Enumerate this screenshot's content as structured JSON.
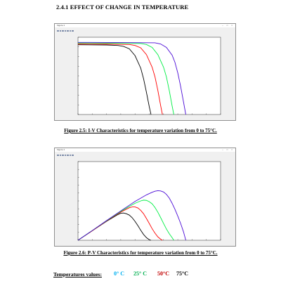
{
  "heading": "2.4.1 EFFECT OF CHANGE IN TEMPERATURE",
  "figure_window": {
    "title": "Figure 1",
    "menu": [
      "File",
      "Edit",
      "View",
      "Insert",
      "Tools",
      "Desktop",
      "Window",
      "Help"
    ],
    "controls": "– □ ×"
  },
  "caption1": "Figure 2.5: I-V Characteristics for temperature variation from 0 to 75°C.",
  "caption2": "Figure 2.6: P-V Characteristics for temperature variation from 0 to 75°C.",
  "legend": {
    "label": "Temperatures values:",
    "items": [
      {
        "text": "0° C",
        "color": "#00b0f0"
      },
      {
        "text": "25° C",
        "color": "#00b050"
      },
      {
        "text": "50°C",
        "color": "#c00000"
      },
      {
        "text": "75°C",
        "color": "#000000"
      }
    ]
  },
  "chart_data": [
    {
      "type": "line",
      "title": "",
      "xlabel": "",
      "ylabel": "",
      "xlim": [
        0,
        50
      ],
      "ylim": [
        0,
        8
      ],
      "grid": false,
      "x_tick_count": 11,
      "y_tick_count": 9,
      "series": [
        {
          "color": "#000000",
          "points": [
            [
              0,
              7.22
            ],
            [
              10,
              7.2
            ],
            [
              14,
              7.15
            ],
            [
              16,
              7.05
            ],
            [
              18,
              6.8
            ],
            [
              20,
              6.1
            ],
            [
              22,
              4.8
            ],
            [
              23,
              3.7
            ],
            [
              24,
              2.3
            ],
            [
              25,
              0.8
            ],
            [
              25.6,
              0
            ]
          ]
        },
        {
          "color": "#ff0000",
          "points": [
            [
              0,
              7.3
            ],
            [
              10,
              7.29
            ],
            [
              18,
              7.25
            ],
            [
              20,
              7.15
            ],
            [
              22,
              6.9
            ],
            [
              24,
              6.2
            ],
            [
              26,
              4.9
            ],
            [
              27,
              3.9
            ],
            [
              28,
              2.5
            ],
            [
              29,
              0.9
            ],
            [
              29.6,
              0
            ]
          ]
        },
        {
          "color": "#00ee44",
          "points": [
            [
              0,
              7.4
            ],
            [
              10,
              7.39
            ],
            [
              22,
              7.35
            ],
            [
              24,
              7.25
            ],
            [
              26,
              6.95
            ],
            [
              28,
              6.2
            ],
            [
              30,
              4.9
            ],
            [
              31,
              3.9
            ],
            [
              32,
              2.5
            ],
            [
              33,
              0.9
            ],
            [
              33.6,
              0
            ]
          ]
        },
        {
          "color": "#4b0bd6",
          "points": [
            [
              0,
              7.47
            ],
            [
              10,
              7.46
            ],
            [
              27,
              7.42
            ],
            [
              29,
              7.3
            ],
            [
              31,
              6.95
            ],
            [
              33,
              6.15
            ],
            [
              34,
              5.4
            ],
            [
              35,
              4.3
            ],
            [
              36,
              2.9
            ],
            [
              37,
              1.3
            ],
            [
              37.8,
              0
            ]
          ]
        }
      ]
    },
    {
      "type": "line",
      "title": "",
      "xlabel": "",
      "ylabel": "",
      "xlim": [
        0,
        50
      ],
      "ylim": [
        0,
        300
      ],
      "grid": false,
      "x_tick_count": 11,
      "y_tick_count": 11,
      "series": [
        {
          "color": "#000000",
          "points": [
            [
              0,
              0
            ],
            [
              5,
              36
            ],
            [
              10,
              72
            ],
            [
              12,
              85
            ],
            [
              14,
              98
            ],
            [
              15,
              103
            ],
            [
              16,
              104
            ],
            [
              17,
              101
            ],
            [
              18,
              96
            ],
            [
              19,
              86
            ],
            [
              20,
              72
            ],
            [
              21,
              56
            ],
            [
              22,
              38
            ],
            [
              23,
              22
            ],
            [
              24,
              10
            ],
            [
              25,
              2
            ],
            [
              25.6,
              0
            ]
          ]
        },
        {
          "color": "#ff0000",
          "points": [
            [
              0,
              0
            ],
            [
              5,
              36
            ],
            [
              10,
              73
            ],
            [
              14,
              101
            ],
            [
              16,
              113
            ],
            [
              18,
              124
            ],
            [
              19,
              127
            ],
            [
              20,
              127
            ],
            [
              21,
              123
            ],
            [
              22,
              114
            ],
            [
              23,
              101
            ],
            [
              24,
              83
            ],
            [
              25,
              64
            ],
            [
              26,
              44
            ],
            [
              27,
              27
            ],
            [
              28,
              13
            ],
            [
              29,
              4
            ],
            [
              29.6,
              0
            ]
          ]
        },
        {
          "color": "#00ee44",
          "points": [
            [
              0,
              0
            ],
            [
              5,
              37
            ],
            [
              10,
              74
            ],
            [
              15,
              110
            ],
            [
              18,
              129
            ],
            [
              20,
              141
            ],
            [
              22,
              150
            ],
            [
              23,
              153
            ],
            [
              24,
              152
            ],
            [
              25,
              147
            ],
            [
              26,
              139
            ],
            [
              27,
              125
            ],
            [
              28,
              107
            ],
            [
              29,
              86
            ],
            [
              30,
              64
            ],
            [
              31,
              43
            ],
            [
              32,
              25
            ],
            [
              33,
              10
            ],
            [
              33.6,
              0
            ]
          ]
        },
        {
          "color": "#4b0bd6",
          "points": [
            [
              0,
              0
            ],
            [
              5,
              37
            ],
            [
              10,
              75
            ],
            [
              15,
              112
            ],
            [
              20,
              148
            ],
            [
              24,
              173
            ],
            [
              26,
              183
            ],
            [
              27,
              187
            ],
            [
              28,
              189
            ],
            [
              29,
              188
            ],
            [
              30,
              184
            ],
            [
              31,
              175
            ],
            [
              32,
              161
            ],
            [
              33,
              141
            ],
            [
              34,
              118
            ],
            [
              35,
              92
            ],
            [
              36,
              64
            ],
            [
              37,
              32
            ],
            [
              37.8,
              0
            ]
          ]
        }
      ]
    }
  ]
}
